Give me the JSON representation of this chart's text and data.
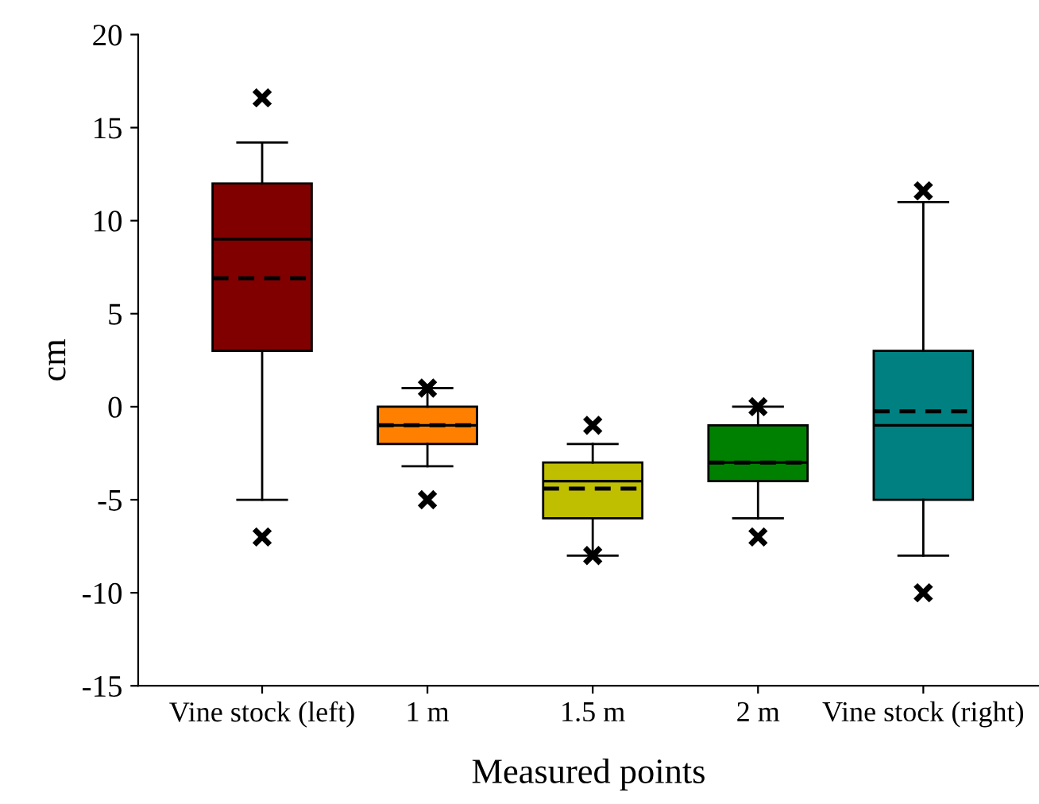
{
  "chart_data": {
    "type": "box",
    "xlabel": "Measured points",
    "ylabel": "cm",
    "categories": [
      "Vine stock (left)",
      "1 m",
      "1.5 m",
      "2 m",
      "Vine stock (right)"
    ],
    "colors": [
      "#800000",
      "#ff8000",
      "#bfbf00",
      "#008000",
      "#008080"
    ],
    "boxes": [
      {
        "low": -5,
        "q1": 3,
        "median": 9,
        "q3": 12,
        "high": 14.2,
        "mean": 6.9,
        "outliers": [
          16.6,
          -7
        ]
      },
      {
        "low": -3.2,
        "q1": -2,
        "median": -1,
        "q3": 0,
        "high": 1,
        "mean": -1,
        "outliers": [
          1,
          -5
        ]
      },
      {
        "low": -8,
        "q1": -6,
        "median": -4,
        "q3": -3,
        "high": -2,
        "mean": -4.4,
        "outliers": [
          -1,
          -8
        ]
      },
      {
        "low": -6,
        "q1": -4,
        "median": -3,
        "q3": -1,
        "high": 0,
        "mean": -3,
        "outliers": [
          0,
          -7
        ]
      },
      {
        "low": -8,
        "q1": -5,
        "median": -1,
        "q3": 3,
        "high": 11,
        "mean": -0.25,
        "outliers": [
          11.6,
          -10
        ]
      }
    ],
    "ylim": [
      -15,
      20
    ],
    "yticks": [
      -15,
      -10,
      -5,
      0,
      5,
      10,
      15,
      20
    ],
    "marker": "cross",
    "grid": false,
    "legend": false
  }
}
